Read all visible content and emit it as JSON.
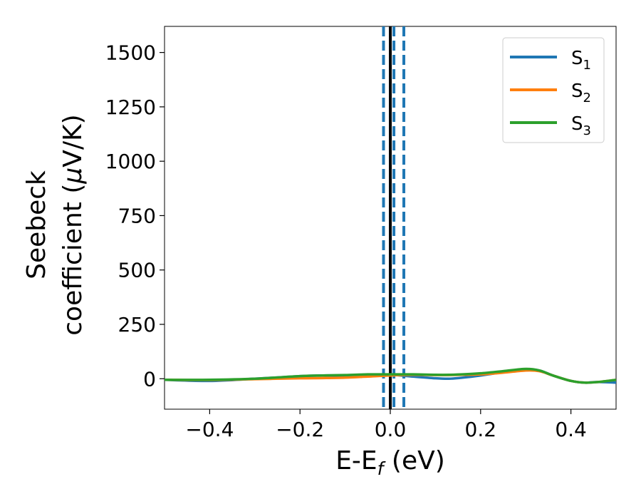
{
  "chart_data": {
    "type": "line",
    "title": "",
    "xlabel": {
      "main": "E-E",
      "sub": "f",
      "unit": " (eV)"
    },
    "ylabel": {
      "line1": "Seebeck",
      "line2_prefix": "coefficient  (",
      "line2_mu": "μ",
      "line2_suffix": "V/K)"
    },
    "xlim": [
      -0.5,
      0.5
    ],
    "ylim": [
      -140,
      1620
    ],
    "xticks": [
      -0.4,
      -0.2,
      0.0,
      0.2,
      0.4
    ],
    "xtick_labels": [
      "−0.4",
      "−0.2",
      "0.0",
      "0.2",
      "0.4"
    ],
    "yticks": [
      0,
      250,
      500,
      750,
      1000,
      1250,
      1500
    ],
    "ytick_labels": [
      "0",
      "250",
      "500",
      "750",
      "1000",
      "1250",
      "1500"
    ],
    "grid": false,
    "legend_position": "top-right",
    "vlines": [
      {
        "x": 0.0,
        "style": "solid",
        "color": "#000000"
      },
      {
        "x": -0.015,
        "style": "dashed",
        "color": "#1f77b4"
      },
      {
        "x": 0.008,
        "style": "dashed",
        "color": "#1f77b4"
      },
      {
        "x": 0.03,
        "style": "dashed",
        "color": "#1f77b4"
      }
    ],
    "series": [
      {
        "name": "S",
        "sub": "1",
        "color": "#1f77b4",
        "x": [
          -0.5,
          -0.4,
          -0.3,
          -0.2,
          -0.15,
          -0.1,
          -0.05,
          0.0,
          0.05,
          0.1,
          0.13,
          0.16,
          0.2,
          0.25,
          0.3,
          0.33,
          0.36,
          0.4,
          0.43,
          0.46,
          0.5
        ],
        "y": [
          -5,
          -10,
          0,
          12,
          15,
          15,
          18,
          18,
          10,
          2,
          0,
          5,
          15,
          30,
          42,
          38,
          15,
          -10,
          -18,
          -15,
          -18
        ]
      },
      {
        "name": "S",
        "sub": "2",
        "color": "#ff7f0e",
        "x": [
          -0.5,
          -0.4,
          -0.3,
          -0.2,
          -0.15,
          -0.1,
          -0.05,
          0.0,
          0.05,
          0.1,
          0.13,
          0.16,
          0.2,
          0.25,
          0.3,
          0.33,
          0.36,
          0.4,
          0.43,
          0.46,
          0.5
        ],
        "y": [
          -5,
          -6,
          -2,
          2,
          3,
          5,
          10,
          15,
          18,
          17,
          17,
          18,
          20,
          28,
          38,
          35,
          15,
          -10,
          -18,
          -15,
          -5
        ]
      },
      {
        "name": "S",
        "sub": "3",
        "color": "#2ca02c",
        "x": [
          -0.5,
          -0.4,
          -0.3,
          -0.2,
          -0.15,
          -0.1,
          -0.05,
          0.0,
          0.05,
          0.1,
          0.13,
          0.16,
          0.2,
          0.25,
          0.3,
          0.33,
          0.36,
          0.4,
          0.43,
          0.46,
          0.5
        ],
        "y": [
          -5,
          -5,
          0,
          12,
          15,
          17,
          20,
          20,
          20,
          18,
          18,
          20,
          25,
          35,
          45,
          38,
          15,
          -10,
          -18,
          -15,
          -5
        ]
      }
    ]
  }
}
